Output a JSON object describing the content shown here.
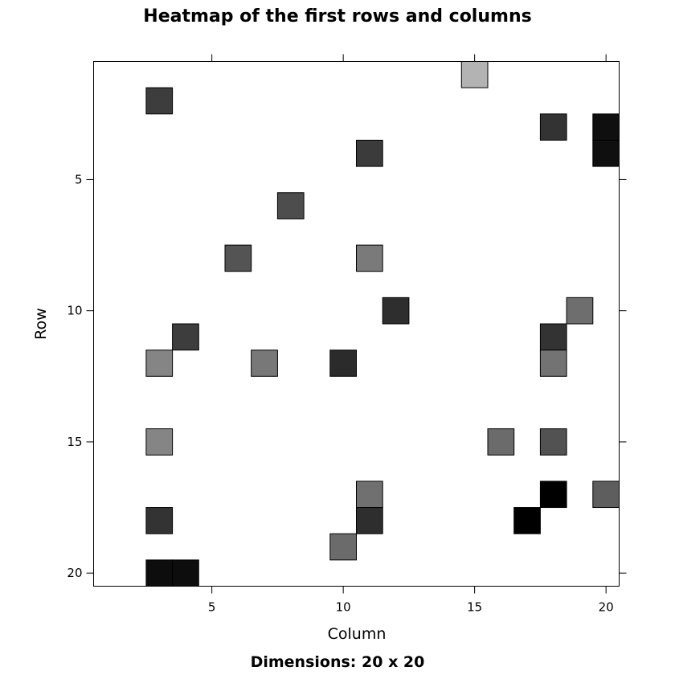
{
  "chart_data": {
    "type": "heatmap",
    "title": "Heatmap of the first rows and columns",
    "xlabel": "Column",
    "ylabel": "Row",
    "subtitle": "Dimensions: 20 x 20",
    "xlim": [
      0.5,
      20.5
    ],
    "ylim": [
      0.5,
      20.5
    ],
    "y_reversed": true,
    "x_ticks": [
      5,
      10,
      15,
      20
    ],
    "x_tick_labels": [
      "5",
      "10",
      "15",
      "20"
    ],
    "y_ticks": [
      5,
      10,
      15,
      20
    ],
    "y_tick_labels": [
      "5",
      "10",
      "15",
      "20"
    ],
    "grid": false,
    "cells": [
      {
        "row": 1,
        "col": 15,
        "value": 0.7
      },
      {
        "row": 2,
        "col": 3,
        "value": 0.24
      },
      {
        "row": 3,
        "col": 18,
        "value": 0.2
      },
      {
        "row": 3,
        "col": 20,
        "value": 0.06
      },
      {
        "row": 4,
        "col": 11,
        "value": 0.23
      },
      {
        "row": 4,
        "col": 20,
        "value": 0.06
      },
      {
        "row": 6,
        "col": 8,
        "value": 0.3
      },
      {
        "row": 8,
        "col": 6,
        "value": 0.33
      },
      {
        "row": 8,
        "col": 11,
        "value": 0.48
      },
      {
        "row": 10,
        "col": 12,
        "value": 0.18
      },
      {
        "row": 10,
        "col": 19,
        "value": 0.43
      },
      {
        "row": 11,
        "col": 4,
        "value": 0.24
      },
      {
        "row": 11,
        "col": 18,
        "value": 0.2
      },
      {
        "row": 12,
        "col": 3,
        "value": 0.52
      },
      {
        "row": 12,
        "col": 7,
        "value": 0.47
      },
      {
        "row": 12,
        "col": 10,
        "value": 0.17
      },
      {
        "row": 12,
        "col": 18,
        "value": 0.45
      },
      {
        "row": 15,
        "col": 3,
        "value": 0.52
      },
      {
        "row": 15,
        "col": 16,
        "value": 0.42
      },
      {
        "row": 15,
        "col": 18,
        "value": 0.32
      },
      {
        "row": 17,
        "col": 11,
        "value": 0.44
      },
      {
        "row": 17,
        "col": 18,
        "value": 0.0
      },
      {
        "row": 17,
        "col": 20,
        "value": 0.37
      },
      {
        "row": 18,
        "col": 3,
        "value": 0.2
      },
      {
        "row": 18,
        "col": 11,
        "value": 0.18
      },
      {
        "row": 18,
        "col": 17,
        "value": 0.0
      },
      {
        "row": 19,
        "col": 10,
        "value": 0.42
      },
      {
        "row": 20,
        "col": 3,
        "value": 0.05
      },
      {
        "row": 20,
        "col": 4,
        "value": 0.05
      }
    ]
  }
}
